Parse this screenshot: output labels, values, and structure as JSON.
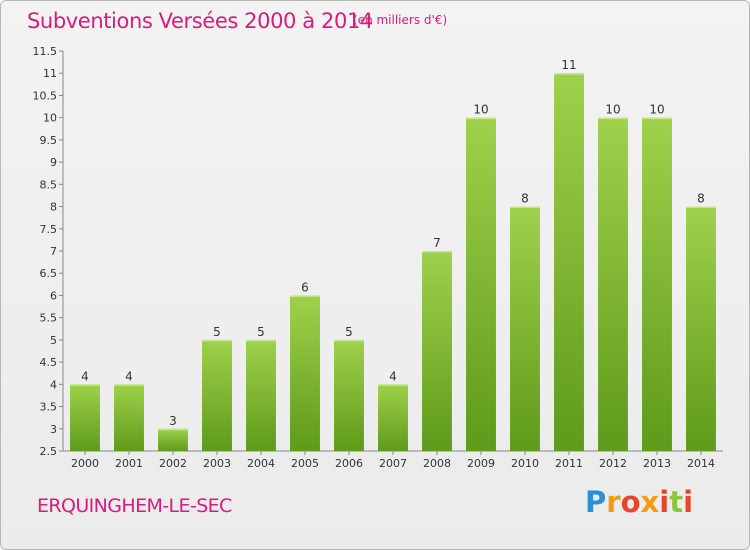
{
  "title": "Subventions Versées 2000 à 2014",
  "subtitle": "(en milliers d'€)",
  "commune": "ERQUINGHEM-LE-SEC",
  "logo": {
    "letters": [
      "P",
      "r",
      "o",
      "x",
      "i",
      "t",
      "i"
    ],
    "colors": [
      "#2a8fd6",
      "#f39c12",
      "#e8452c",
      "#8cc63f"
    ]
  },
  "chart_data": {
    "type": "bar",
    "categories": [
      "2000",
      "2001",
      "2002",
      "2003",
      "2004",
      "2005",
      "2006",
      "2007",
      "2008",
      "2009",
      "2010",
      "2011",
      "2012",
      "2013",
      "2014"
    ],
    "values": [
      4,
      4,
      3,
      5,
      5,
      6,
      5,
      4,
      7,
      10,
      8,
      11,
      10,
      10,
      8
    ],
    "value_labels": [
      "4",
      "4",
      "3",
      "5",
      "5",
      "6",
      "5",
      "4",
      "7",
      "10",
      "8",
      "11",
      "10",
      "10",
      "8"
    ],
    "ylim": [
      2.5,
      11.5
    ],
    "yticks": [
      "2.5",
      "3",
      "3.5",
      "4",
      "4.5",
      "5",
      "5.5",
      "6",
      "6.5",
      "7",
      "7.5",
      "8",
      "8.5",
      "9",
      "9.5",
      "10",
      "10.5",
      "11",
      "11.5"
    ],
    "ytick_values": [
      2.5,
      3,
      3.5,
      4,
      4.5,
      5,
      5.5,
      6,
      6.5,
      7,
      7.5,
      8,
      8.5,
      9,
      9.5,
      10,
      10.5,
      11,
      11.5
    ],
    "grid": false,
    "bar_color_top": "#9fd14b",
    "bar_color_bottom": "#5f9a1a"
  }
}
